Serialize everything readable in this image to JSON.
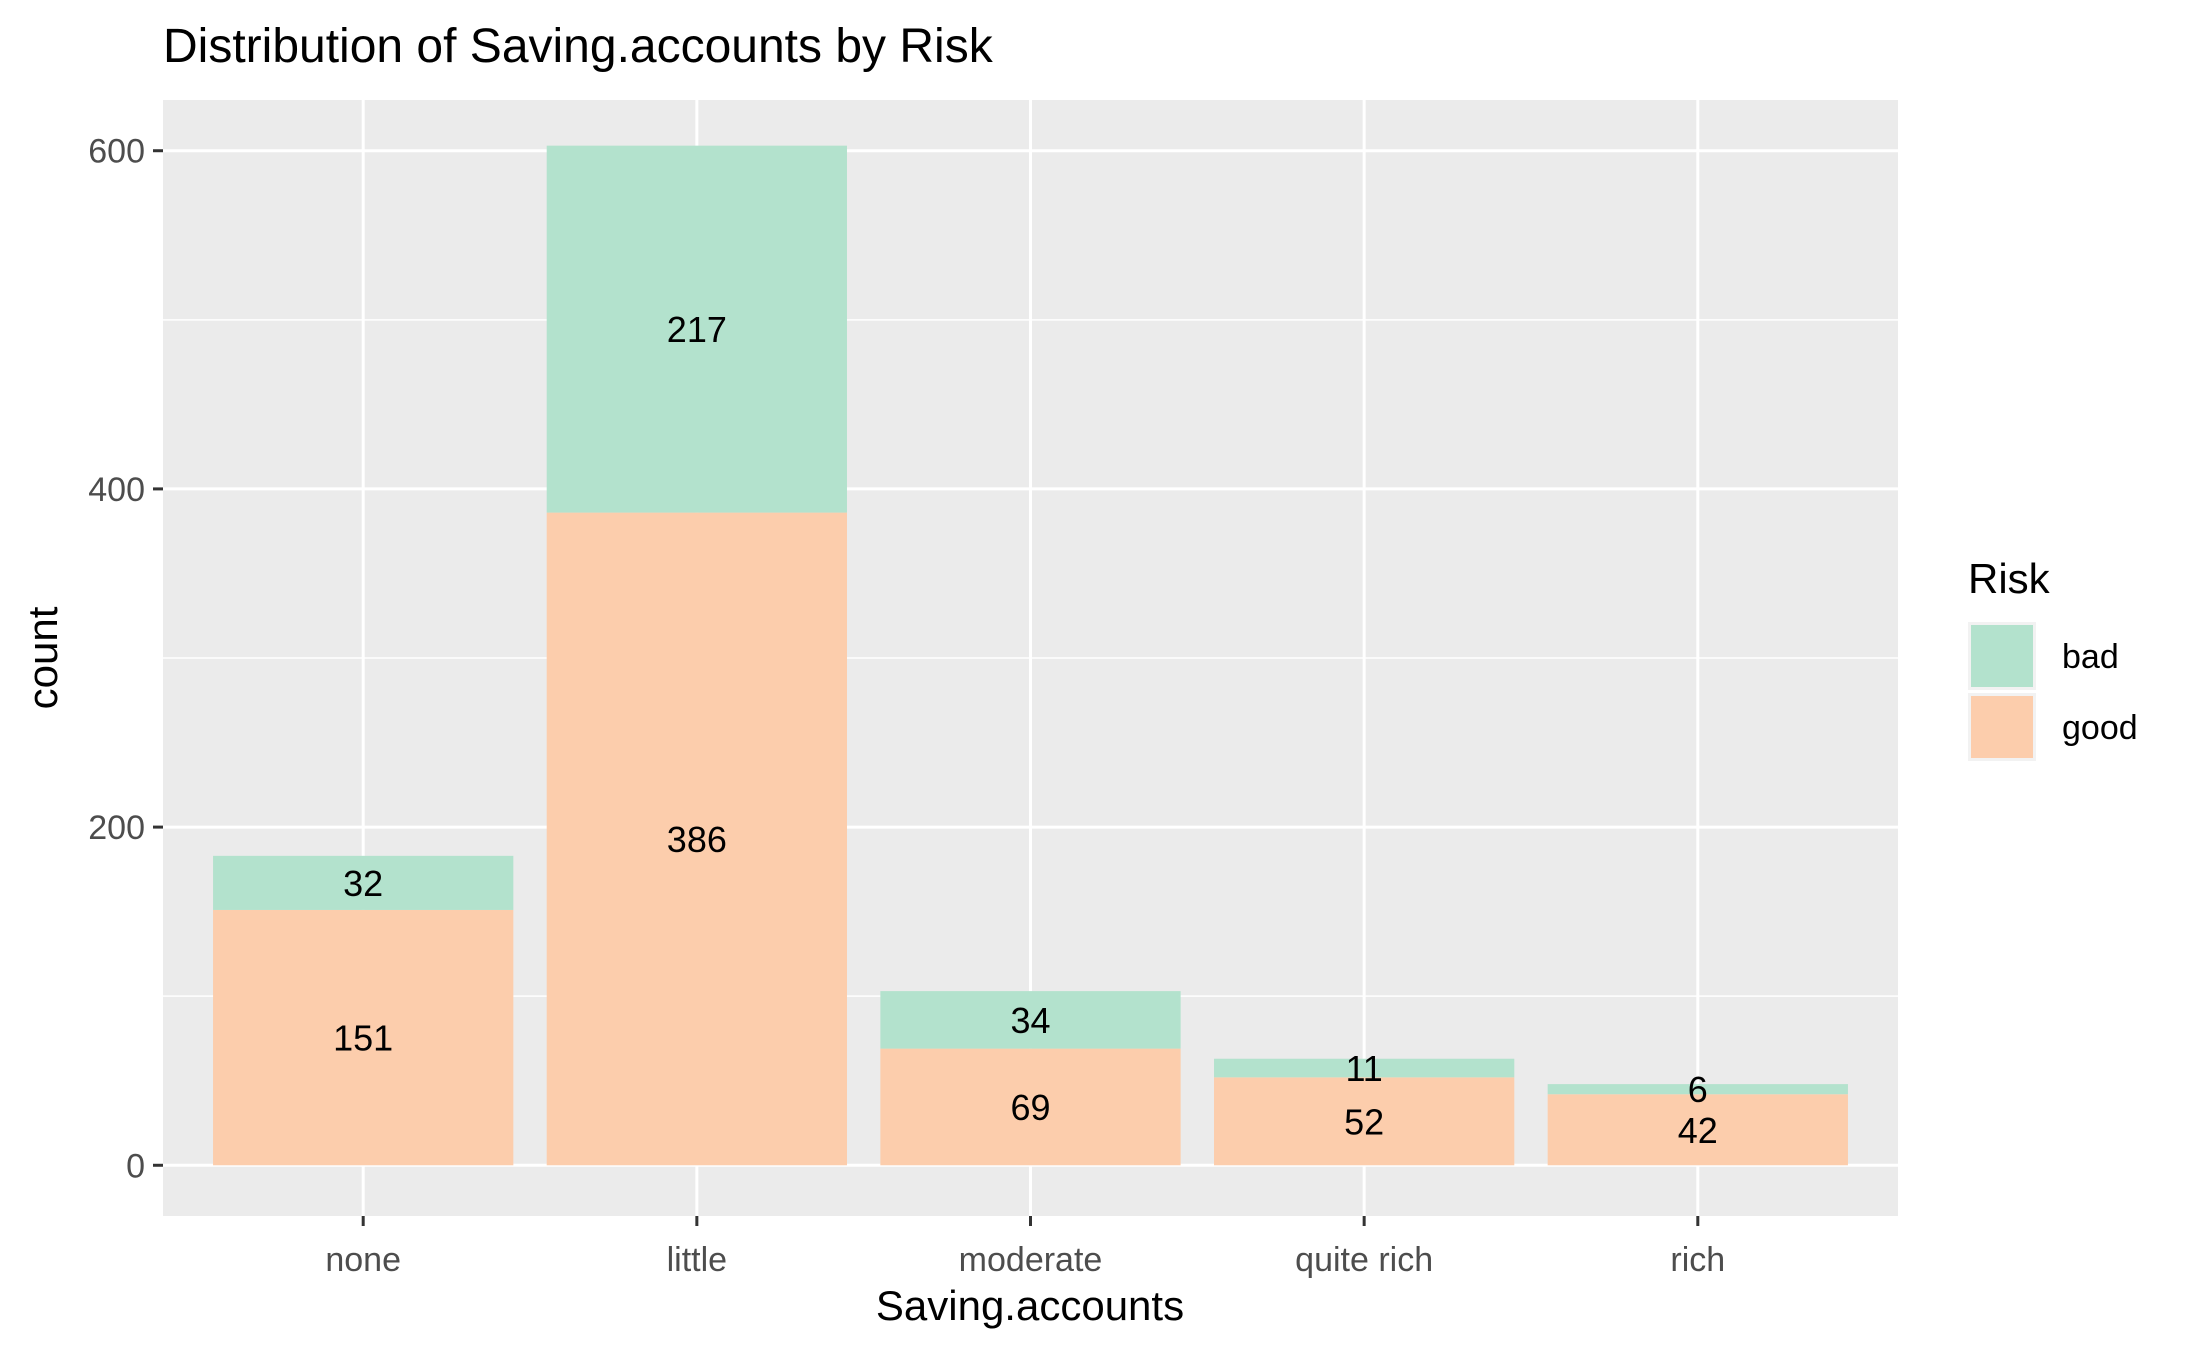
{
  "chart_data": {
    "type": "bar",
    "stacked": true,
    "title": "Distribution of Saving.accounts by Risk",
    "xlabel": "Saving.accounts",
    "ylabel": "count",
    "categories": [
      "none",
      "little",
      "moderate",
      "quite rich",
      "rich"
    ],
    "series": [
      {
        "name": "good",
        "values": [
          151,
          386,
          69,
          52,
          42
        ],
        "color": "#FCCDAC"
      },
      {
        "name": "bad",
        "values": [
          32,
          217,
          34,
          11,
          6
        ],
        "color": "#B3E2CD"
      }
    ],
    "ylim": [
      -30,
      630
    ],
    "yticks": [
      0,
      200,
      400,
      600
    ],
    "grid": true,
    "legend": {
      "title": "Risk",
      "position": "right",
      "entries": [
        "bad",
        "good"
      ]
    },
    "panel_background": "#EBEBEB",
    "gridline_color": "#FFFFFF"
  }
}
